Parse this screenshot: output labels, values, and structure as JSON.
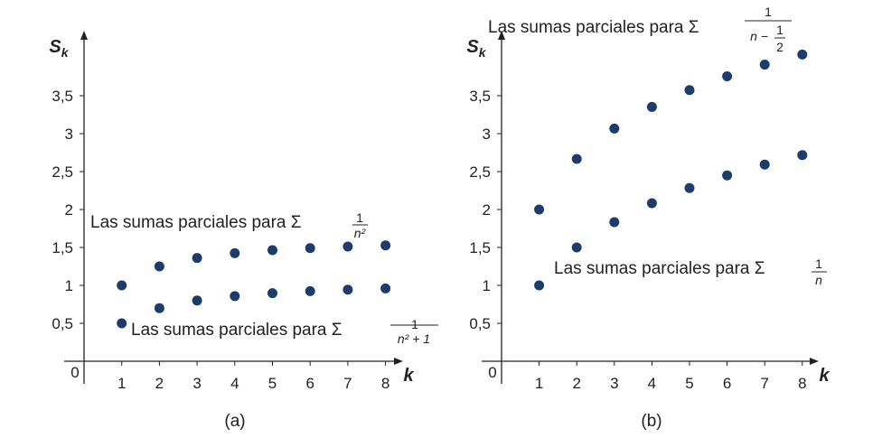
{
  "chart_data": [
    {
      "type": "scatter",
      "caption": "(a)",
      "xlabel": "k",
      "ylabel": "S",
      "ylabel_sub": "k",
      "origin_label": "0",
      "x_ticks": [
        "1",
        "2",
        "3",
        "4",
        "5",
        "6",
        "7",
        "8"
      ],
      "y_ticks": [
        {
          "value": 0.5,
          "label": "0,5"
        },
        {
          "value": 1,
          "label": "1"
        },
        {
          "value": 1.5,
          "label": "1,5"
        },
        {
          "value": 2,
          "label": "2"
        },
        {
          "value": 2.5,
          "label": "2,5"
        },
        {
          "value": 3,
          "label": "3"
        },
        {
          "value": 3.5,
          "label": "3,5"
        }
      ],
      "xlim": [
        0,
        8.5
      ],
      "ylim": [
        0,
        4.3
      ],
      "grid": false,
      "point_color": "#1d3b6b",
      "series": [
        {
          "x": [
            1,
            2,
            3,
            4,
            5,
            6,
            7,
            8
          ],
          "y": [
            1,
            1.25,
            1.361,
            1.424,
            1.464,
            1.491,
            1.512,
            1.527
          ]
        },
        {
          "x": [
            1,
            2,
            3,
            4,
            5,
            6,
            7,
            8
          ],
          "y": [
            0.5,
            0.7,
            0.8,
            0.859,
            0.897,
            0.924,
            0.944,
            0.96
          ]
        }
      ],
      "annotations": [
        {
          "text": "Las sumas parciales para Σ",
          "numerator": "1",
          "denominator": "n²"
        },
        {
          "text": "Las sumas parciales para Σ",
          "numerator": "1",
          "denominator": "n² + 1"
        }
      ]
    },
    {
      "type": "scatter",
      "caption": "(b)",
      "xlabel": "k",
      "ylabel": "S",
      "ylabel_sub": "k",
      "origin_label": "0",
      "x_ticks": [
        "1",
        "2",
        "3",
        "4",
        "5",
        "6",
        "7",
        "8"
      ],
      "y_ticks": [
        {
          "value": 0.5,
          "label": "0,5"
        },
        {
          "value": 1,
          "label": "1"
        },
        {
          "value": 1.5,
          "label": "1,5"
        },
        {
          "value": 2,
          "label": "2"
        },
        {
          "value": 2.5,
          "label": "2,5"
        },
        {
          "value": 3,
          "label": "3"
        },
        {
          "value": 3.5,
          "label": "3,5"
        }
      ],
      "xlim": [
        0,
        8.5
      ],
      "ylim": [
        0,
        4.3
      ],
      "grid": false,
      "point_color": "#1d3b6b",
      "series": [
        {
          "x": [
            1,
            2,
            3,
            4,
            5,
            6,
            7,
            8
          ],
          "y": [
            2,
            2.667,
            3.067,
            3.352,
            3.574,
            3.756,
            3.91,
            4.043
          ]
        },
        {
          "x": [
            1,
            2,
            3,
            4,
            5,
            6,
            7,
            8
          ],
          "y": [
            1,
            1.5,
            1.833,
            2.083,
            2.283,
            2.45,
            2.593,
            2.718
          ]
        }
      ],
      "annotations": [
        {
          "text": "Las sumas parciales para Σ",
          "numerator": "1",
          "denominator": "n −",
          "denominator_frac_num": "1",
          "denominator_frac_den": "2"
        },
        {
          "text": "Las sumas parciales para Σ",
          "numerator": "1",
          "denominator": "n"
        }
      ]
    }
  ]
}
